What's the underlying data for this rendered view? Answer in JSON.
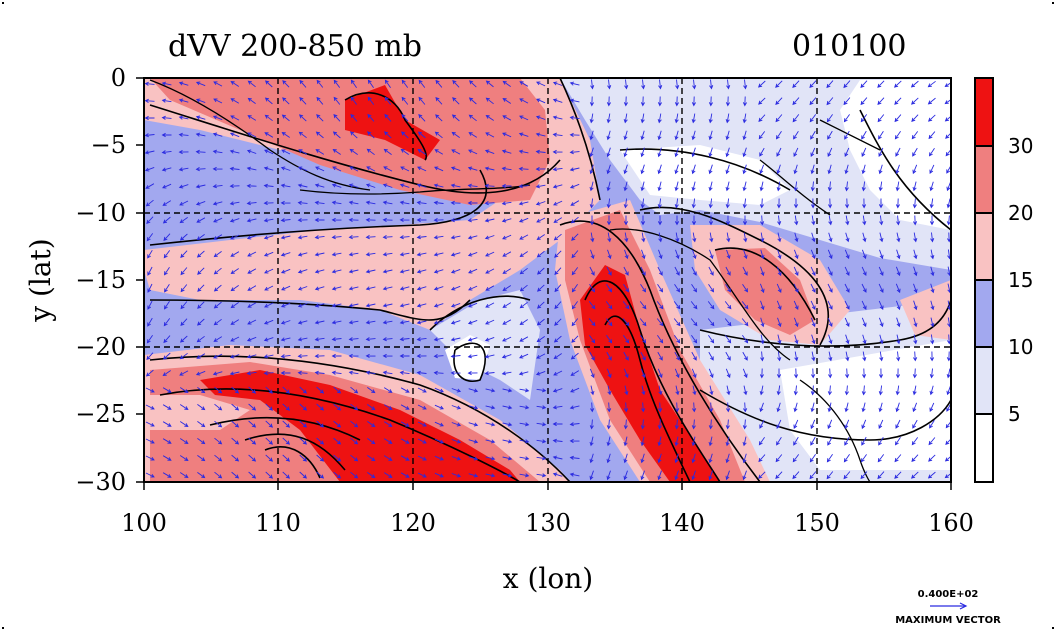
{
  "chart_data": {
    "type": "heatmap",
    "title_left": "dVV 200-850 mb",
    "title_right": "010100",
    "xlabel": "x (lon)",
    "ylabel": "y (lat)",
    "x_ticks": [
      "100",
      "110",
      "120",
      "130",
      "140",
      "150",
      "160"
    ],
    "y_ticks": [
      "0",
      "−5",
      "−10",
      "−15",
      "−20",
      "−25",
      "−30"
    ],
    "x_tick_values": [
      100,
      110,
      120,
      130,
      140,
      150,
      160
    ],
    "y_tick_values": [
      0,
      -5,
      -10,
      -15,
      -20,
      -25,
      -30
    ],
    "xlim": [
      100,
      160
    ],
    "ylim": [
      -30,
      0
    ],
    "grid": "dashed at each tick",
    "colorbar": {
      "levels": [
        0,
        5,
        10,
        15,
        20,
        30,
        40
      ],
      "labels": [
        "5",
        "10",
        "15",
        "20",
        "30"
      ],
      "colors": [
        "#ffffff",
        "#e1e4f7",
        "#a2a8ef",
        "#f9c2c2",
        "#ef7f7f",
        "#ee1212"
      ]
    },
    "vectors": {
      "color": "#2a2ae0",
      "reference_value": "0.400E+02",
      "reference_label": "MAXIMUM VECTOR"
    }
  }
}
